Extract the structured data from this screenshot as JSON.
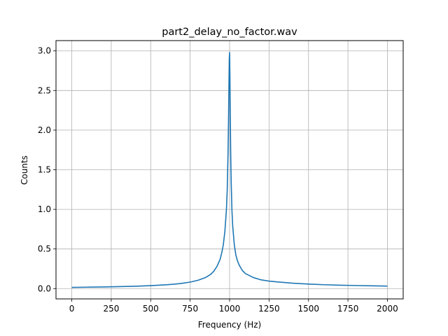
{
  "chart_data": {
    "type": "line",
    "title": "part2_delay_no_factor.wav",
    "xlabel": "Frequency (Hz)",
    "ylabel": "Counts",
    "xlim": [
      -100,
      2100
    ],
    "ylim": [
      -0.13,
      3.13
    ],
    "xticks": [
      0,
      250,
      500,
      750,
      1000,
      1250,
      1500,
      1750,
      2000
    ],
    "yticks": [
      0.0,
      0.5,
      1.0,
      1.5,
      2.0,
      2.5,
      3.0
    ],
    "xtick_labels": [
      "0",
      "250",
      "500",
      "750",
      "1000",
      "1250",
      "1500",
      "1750",
      "2000"
    ],
    "ytick_labels": [
      "0.0",
      "0.5",
      "1.0",
      "1.5",
      "2.0",
      "2.5",
      "3.0"
    ],
    "grid": true,
    "colors": {
      "series": "#1f77b4",
      "grid": "#b0b0b0"
    },
    "series": [
      {
        "x": [
          0,
          100,
          200,
          300,
          400,
          500,
          600,
          650,
          700,
          750,
          800,
          850,
          880,
          900,
          920,
          940,
          950,
          960,
          970,
          980,
          985,
          990,
          993,
          996,
          998,
          1000,
          1002,
          1004,
          1007,
          1010,
          1015,
          1020,
          1030,
          1040,
          1050,
          1060,
          1080,
          1100,
          1150,
          1200,
          1250,
          1300,
          1400,
          1500,
          1600,
          1700,
          1800,
          1900,
          2000
        ],
        "y": [
          0.015,
          0.018,
          0.021,
          0.025,
          0.03,
          0.037,
          0.048,
          0.056,
          0.067,
          0.082,
          0.105,
          0.142,
          0.18,
          0.22,
          0.28,
          0.37,
          0.45,
          0.55,
          0.72,
          1.0,
          1.25,
          1.7,
          2.1,
          2.6,
          2.9,
          2.98,
          2.7,
          2.25,
          1.7,
          1.35,
          0.98,
          0.78,
          0.55,
          0.42,
          0.35,
          0.3,
          0.23,
          0.19,
          0.14,
          0.11,
          0.095,
          0.085,
          0.068,
          0.057,
          0.049,
          0.043,
          0.039,
          0.035,
          0.032
        ]
      }
    ]
  }
}
